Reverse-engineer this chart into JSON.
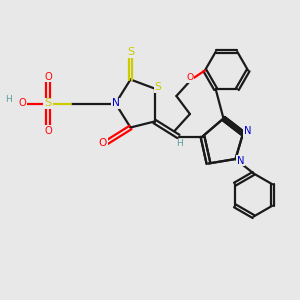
{
  "bg_color": "#e8e8e8",
  "atom_colors": {
    "C": "#000000",
    "N": "#0000cd",
    "O": "#ff0000",
    "S": "#cccc00",
    "H": "#5f9ea0"
  },
  "bond_color": "#1a1a1a",
  "bond_width": 1.6,
  "dbo": 0.07
}
